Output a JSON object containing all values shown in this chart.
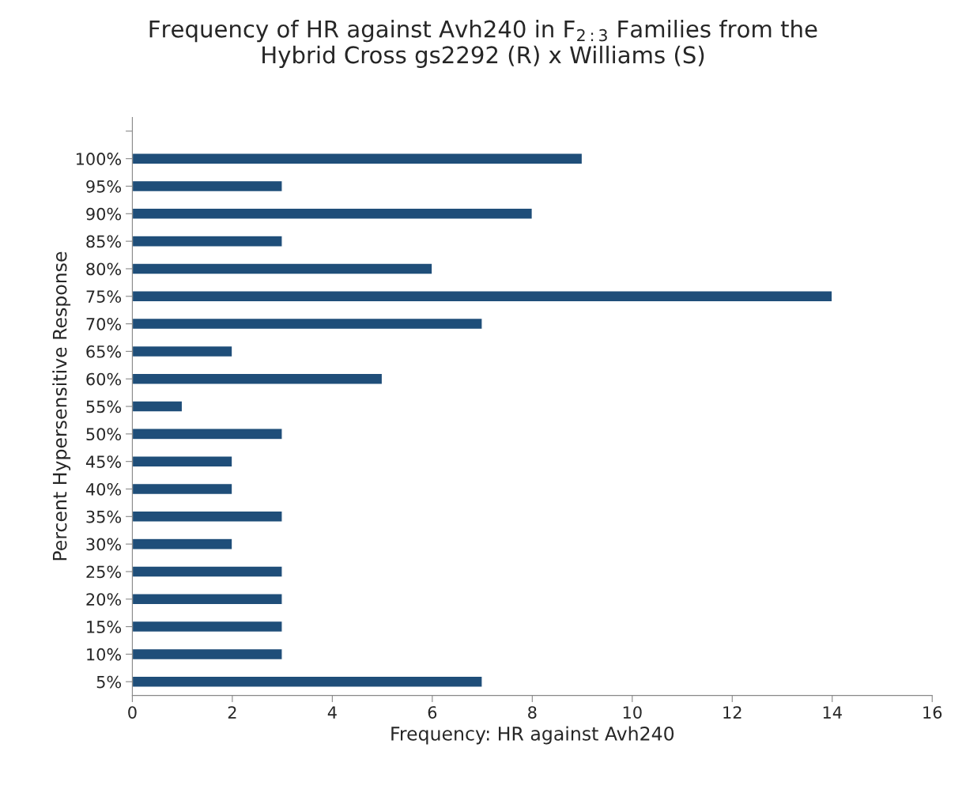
{
  "chart_data": {
    "type": "bar",
    "orientation": "horizontal",
    "title": "Frequency of HR against Avh240 in F$_{2:3}$ Families from the\nHybrid Cross gs2292 (R) x Williams (S)",
    "xlabel": "Frequency: HR against Avh240",
    "ylabel": "Percent Hypersensitive Response",
    "categories": [
      null,
      "100%",
      "95%",
      "90%",
      "85%",
      "80%",
      "75%",
      "70%",
      "65%",
      "60%",
      "55%",
      "50%",
      "45%",
      "40%",
      "35%",
      "30%",
      "25%",
      "20%",
      "15%",
      "10%",
      "5%"
    ],
    "values": [
      null,
      9,
      3,
      8,
      3,
      6,
      14,
      7,
      2,
      5,
      1,
      3,
      2,
      2,
      3,
      2,
      3,
      3,
      3,
      3,
      7
    ],
    "color": "#1f4e79",
    "xlim": [
      0,
      16
    ],
    "xticks": [
      0,
      2,
      4,
      6,
      8,
      10,
      12,
      14,
      16
    ],
    "grid": false,
    "legend": false
  }
}
